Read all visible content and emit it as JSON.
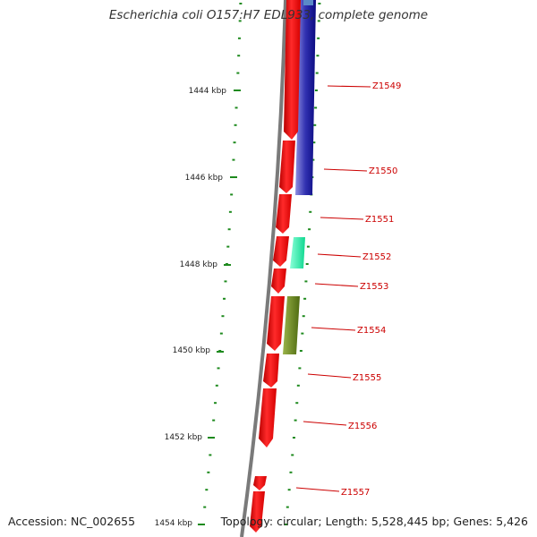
{
  "title": "Escherichia coli O157:H7 EDL933, complete genome",
  "accession": "Accession: NC_002655",
  "topology": "Topology: circular; Length: 5,528,445 bp; Genes: 5,426",
  "colors": {
    "backbone": "#7a7a7a",
    "tick": "#1e8a1e",
    "forward_gene": "#ff0000",
    "label": "#cc0000",
    "blue_feature": "#1a1a9a",
    "cyan_feature": "#1ef0a8",
    "olive_feature": "#6b8a1e"
  },
  "scale_labels": [
    "1444 kbp",
    "1446 kbp",
    "1448 kbp",
    "1450 kbp",
    "1452 kbp",
    "1454 kbp"
  ],
  "genes": [
    "Z1549",
    "Z1550",
    "Z1551",
    "Z1552",
    "Z1553",
    "Z1554",
    "Z1555",
    "Z1556",
    "Z1557"
  ]
}
